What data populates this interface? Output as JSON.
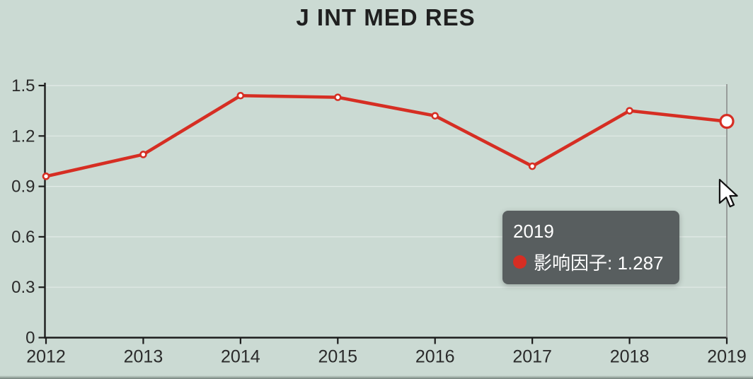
{
  "title": "J INT MED RES",
  "colors": {
    "background": "#cbdad3",
    "line": "#d62e23",
    "point_fill": "#ffffff",
    "axis": "#1c1c1c",
    "tick_text": "#2a2a2a",
    "grid": "rgba(255,255,255,0.45)",
    "crosshair": "#8c8c8c",
    "tooltip_bg": "#53585a",
    "tooltip_text": "#ffffff"
  },
  "chart_data": {
    "type": "line",
    "title": "J INT MED RES",
    "categories": [
      "2012",
      "2013",
      "2014",
      "2015",
      "2016",
      "2017",
      "2018",
      "2019"
    ],
    "series": [
      {
        "name": "影响因子",
        "values": [
          0.96,
          1.09,
          1.44,
          1.43,
          1.32,
          1.02,
          1.35,
          1.287
        ]
      }
    ],
    "xlabel": "",
    "ylabel": "",
    "ylim": [
      0,
      1.5
    ],
    "yticks": [
      0,
      0.3,
      0.6,
      0.9,
      1.2,
      1.5
    ],
    "ytick_labels": [
      "0",
      "0.3",
      "0.6",
      "0.9",
      "1.2",
      "1.5"
    ],
    "grid": true,
    "legend": "none",
    "highlight_index": 7
  },
  "tooltip": {
    "year": "2019",
    "series_label": "影响因子",
    "value": "1.287",
    "line2": "影响因子: 1.287"
  }
}
